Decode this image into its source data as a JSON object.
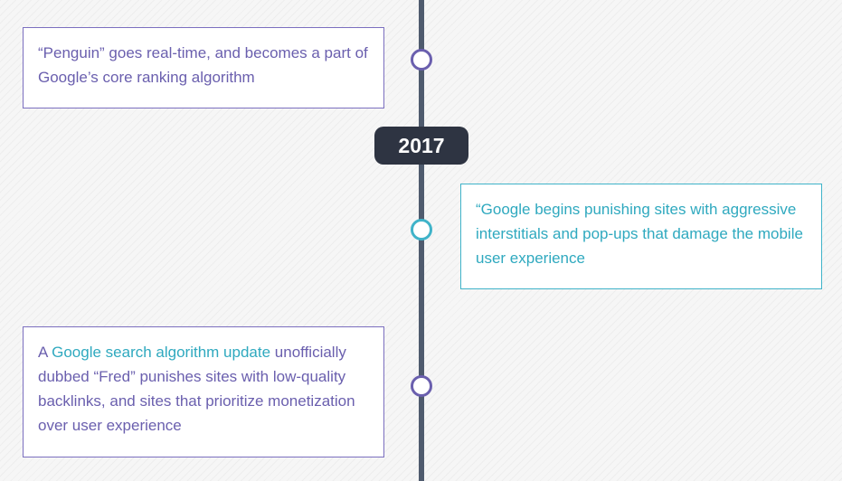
{
  "timeline": {
    "events": [
      {
        "text": "“Penguin” goes real-time, and becomes a part of Google’s core ranking algorithm"
      },
      {
        "text": "“Google begins punishing sites with aggressive interstitials and pop-ups that damage the mobile user experience"
      },
      {
        "prefix": "A ",
        "link_text": "Google search algorithm update",
        "suffix": " unofficially dubbed “Fred” punishes sites with low-quality backlinks, and sites that prioritize monetization over user experience"
      }
    ],
    "year_label": "2017"
  },
  "colors": {
    "left_accent": "#6a5fae",
    "right_accent": "#3fb3c9",
    "line": "#4f5b6e",
    "badge_bg": "#2e3442"
  }
}
